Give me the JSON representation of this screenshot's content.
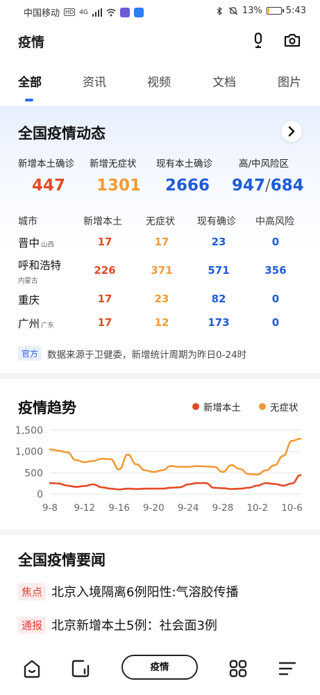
{
  "status_bar": {
    "carrier": "中国移动",
    "hd": "HD",
    "network": "4G",
    "battery": "13%",
    "battery_level": 0.13,
    "time": "5:43"
  },
  "header": {
    "title": "疫情"
  },
  "tabs": [
    {
      "label": "全部",
      "active": true
    },
    {
      "label": "资讯",
      "active": false
    },
    {
      "label": "视频",
      "active": false
    },
    {
      "label": "文档",
      "active": false
    },
    {
      "label": "图片",
      "active": false
    }
  ],
  "overview": {
    "title": "全国疫情动态",
    "stats": [
      {
        "label": "新增本土确诊",
        "value": "447"
      },
      {
        "label": "新增无症状",
        "value": "1301"
      },
      {
        "label": "现有本土确诊",
        "value": "2666"
      },
      {
        "label": "高/中风险区",
        "value_high": "947",
        "separator": "/",
        "value_mid": "684"
      }
    ],
    "table_headers": [
      "城市",
      "新增本土",
      "无症状",
      "现有确诊",
      "中高风险"
    ],
    "rows": [
      {
        "city": "晋中",
        "province": "山西",
        "new_local": "17",
        "asymptomatic": "17",
        "existing": "23",
        "risk": "0"
      },
      {
        "city": "呼和浩特",
        "province": "内蒙古",
        "new_local": "226",
        "asymptomatic": "371",
        "existing": "571",
        "risk": "356"
      },
      {
        "city": "重庆",
        "province": "",
        "new_local": "17",
        "asymptomatic": "23",
        "existing": "82",
        "risk": "0"
      },
      {
        "city": "广州",
        "province": "广东",
        "new_local": "17",
        "asymptomatic": "12",
        "existing": "173",
        "risk": "0"
      }
    ],
    "source_badge": "官方",
    "source_text": "数据来源于卫健委，新增统计周期为昨日0-24时"
  },
  "trend": {
    "title": "疫情趋势",
    "legend": [
      {
        "name": "新增本土",
        "color": "#e24a26"
      },
      {
        "name": "无症状",
        "color": "#f29a36"
      }
    ]
  },
  "chart_data": {
    "type": "line",
    "x": [
      "9-8",
      "9-9",
      "9-10",
      "9-11",
      "9-12",
      "9-13",
      "9-14",
      "9-15",
      "9-16",
      "9-17",
      "9-18",
      "9-19",
      "9-20",
      "9-21",
      "9-22",
      "9-23",
      "9-24",
      "9-25",
      "9-26",
      "9-27",
      "9-28",
      "9-29",
      "9-30",
      "10-1",
      "10-2",
      "10-3",
      "10-4",
      "10-5",
      "10-6",
      "10-7"
    ],
    "xticks": [
      "9-8",
      "9-12",
      "9-16",
      "9-20",
      "9-24",
      "9-28",
      "10-2",
      "10-6"
    ],
    "yticks": [
      "0",
      "500",
      "1,000",
      "1,500"
    ],
    "ylim": [
      0,
      1500
    ],
    "series": [
      {
        "name": "新增本土",
        "color": "#e24a26",
        "values": [
          260,
          250,
          200,
          170,
          190,
          230,
          160,
          130,
          110,
          130,
          120,
          130,
          130,
          130,
          150,
          160,
          230,
          260,
          260,
          150,
          140,
          120,
          130,
          150,
          200,
          260,
          240,
          200,
          250,
          447
        ]
      },
      {
        "name": "无症状",
        "color": "#f29a36",
        "values": [
          1050,
          1020,
          980,
          800,
          750,
          780,
          830,
          820,
          580,
          930,
          700,
          560,
          520,
          560,
          660,
          640,
          640,
          660,
          650,
          640,
          520,
          680,
          590,
          470,
          460,
          560,
          680,
          900,
          1250,
          1301
        ]
      }
    ],
    "grid": true
  },
  "news": {
    "title": "全国疫情要闻",
    "items": [
      {
        "tag": "焦点",
        "text": "北京入境隔离6例阳性:气溶胶传播"
      },
      {
        "tag": "通报",
        "text": "北京新增本土5例：社会面3例"
      }
    ]
  },
  "bottom_nav": {
    "center_label": "疫情",
    "icons": [
      "home-icon",
      "window-icon",
      "grid-icon",
      "menu-icon"
    ]
  }
}
